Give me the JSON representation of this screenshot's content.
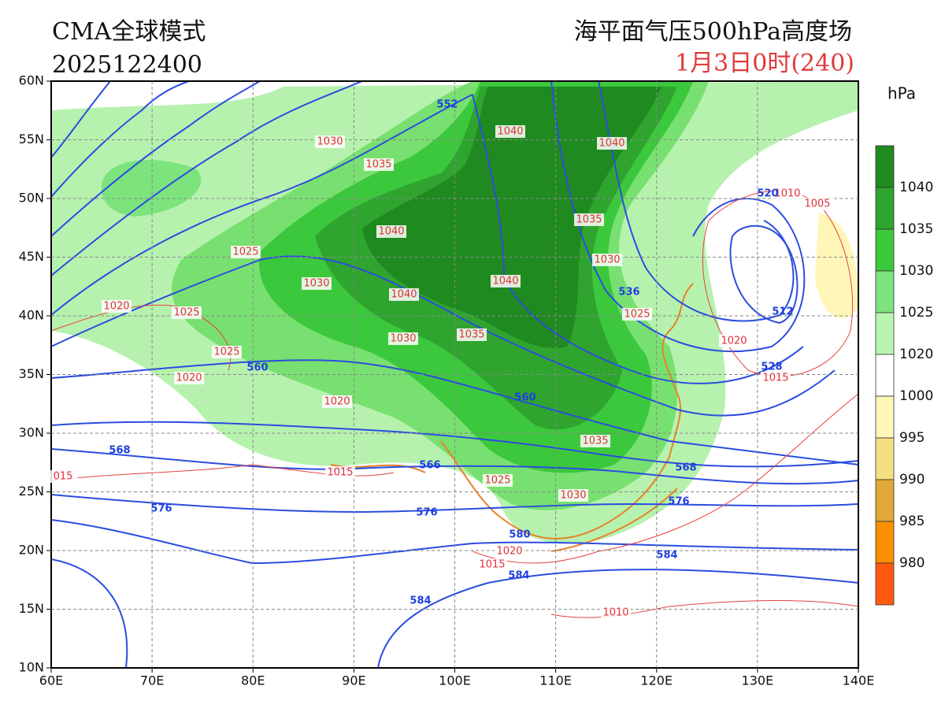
{
  "header": {
    "model": "CMA全球模式",
    "run": "2025122400",
    "title": "海平面气压500hPa高度场",
    "valid": "1月3日0时(240)"
  },
  "axes": {
    "lat_labels": [
      "60N",
      "55N",
      "50N",
      "45N",
      "40N",
      "35N",
      "30N",
      "25N",
      "20N",
      "15N",
      "10N"
    ],
    "lon_labels": [
      "60E",
      "70E",
      "80E",
      "90E",
      "100E",
      "110E",
      "120E",
      "130E",
      "140E"
    ]
  },
  "colorbar": {
    "unit": "hPa",
    "labels": [
      "1040",
      "1035",
      "1030",
      "1025",
      "1020",
      "1000",
      "995",
      "990",
      "985",
      "980"
    ]
  },
  "pressure_labels": [
    "1040",
    "1040",
    "1030",
    "1035",
    "1040",
    "1035",
    "1025",
    "1030",
    "1030",
    "1040",
    "1040",
    "1020",
    "1025",
    "1025",
    "1030",
    "1035",
    "1025",
    "1020",
    "1020",
    "1020",
    "1015",
    "1035",
    "1015",
    "015",
    "1025",
    "1030",
    "1020",
    "1015",
    "1010",
    "1010",
    "1005"
  ],
  "height_labels": [
    "552",
    "520",
    "536",
    "512",
    "528",
    "560",
    "560",
    "568",
    "566",
    "568",
    "576",
    "576",
    "576",
    "580",
    "584",
    "584",
    "584"
  ]
}
